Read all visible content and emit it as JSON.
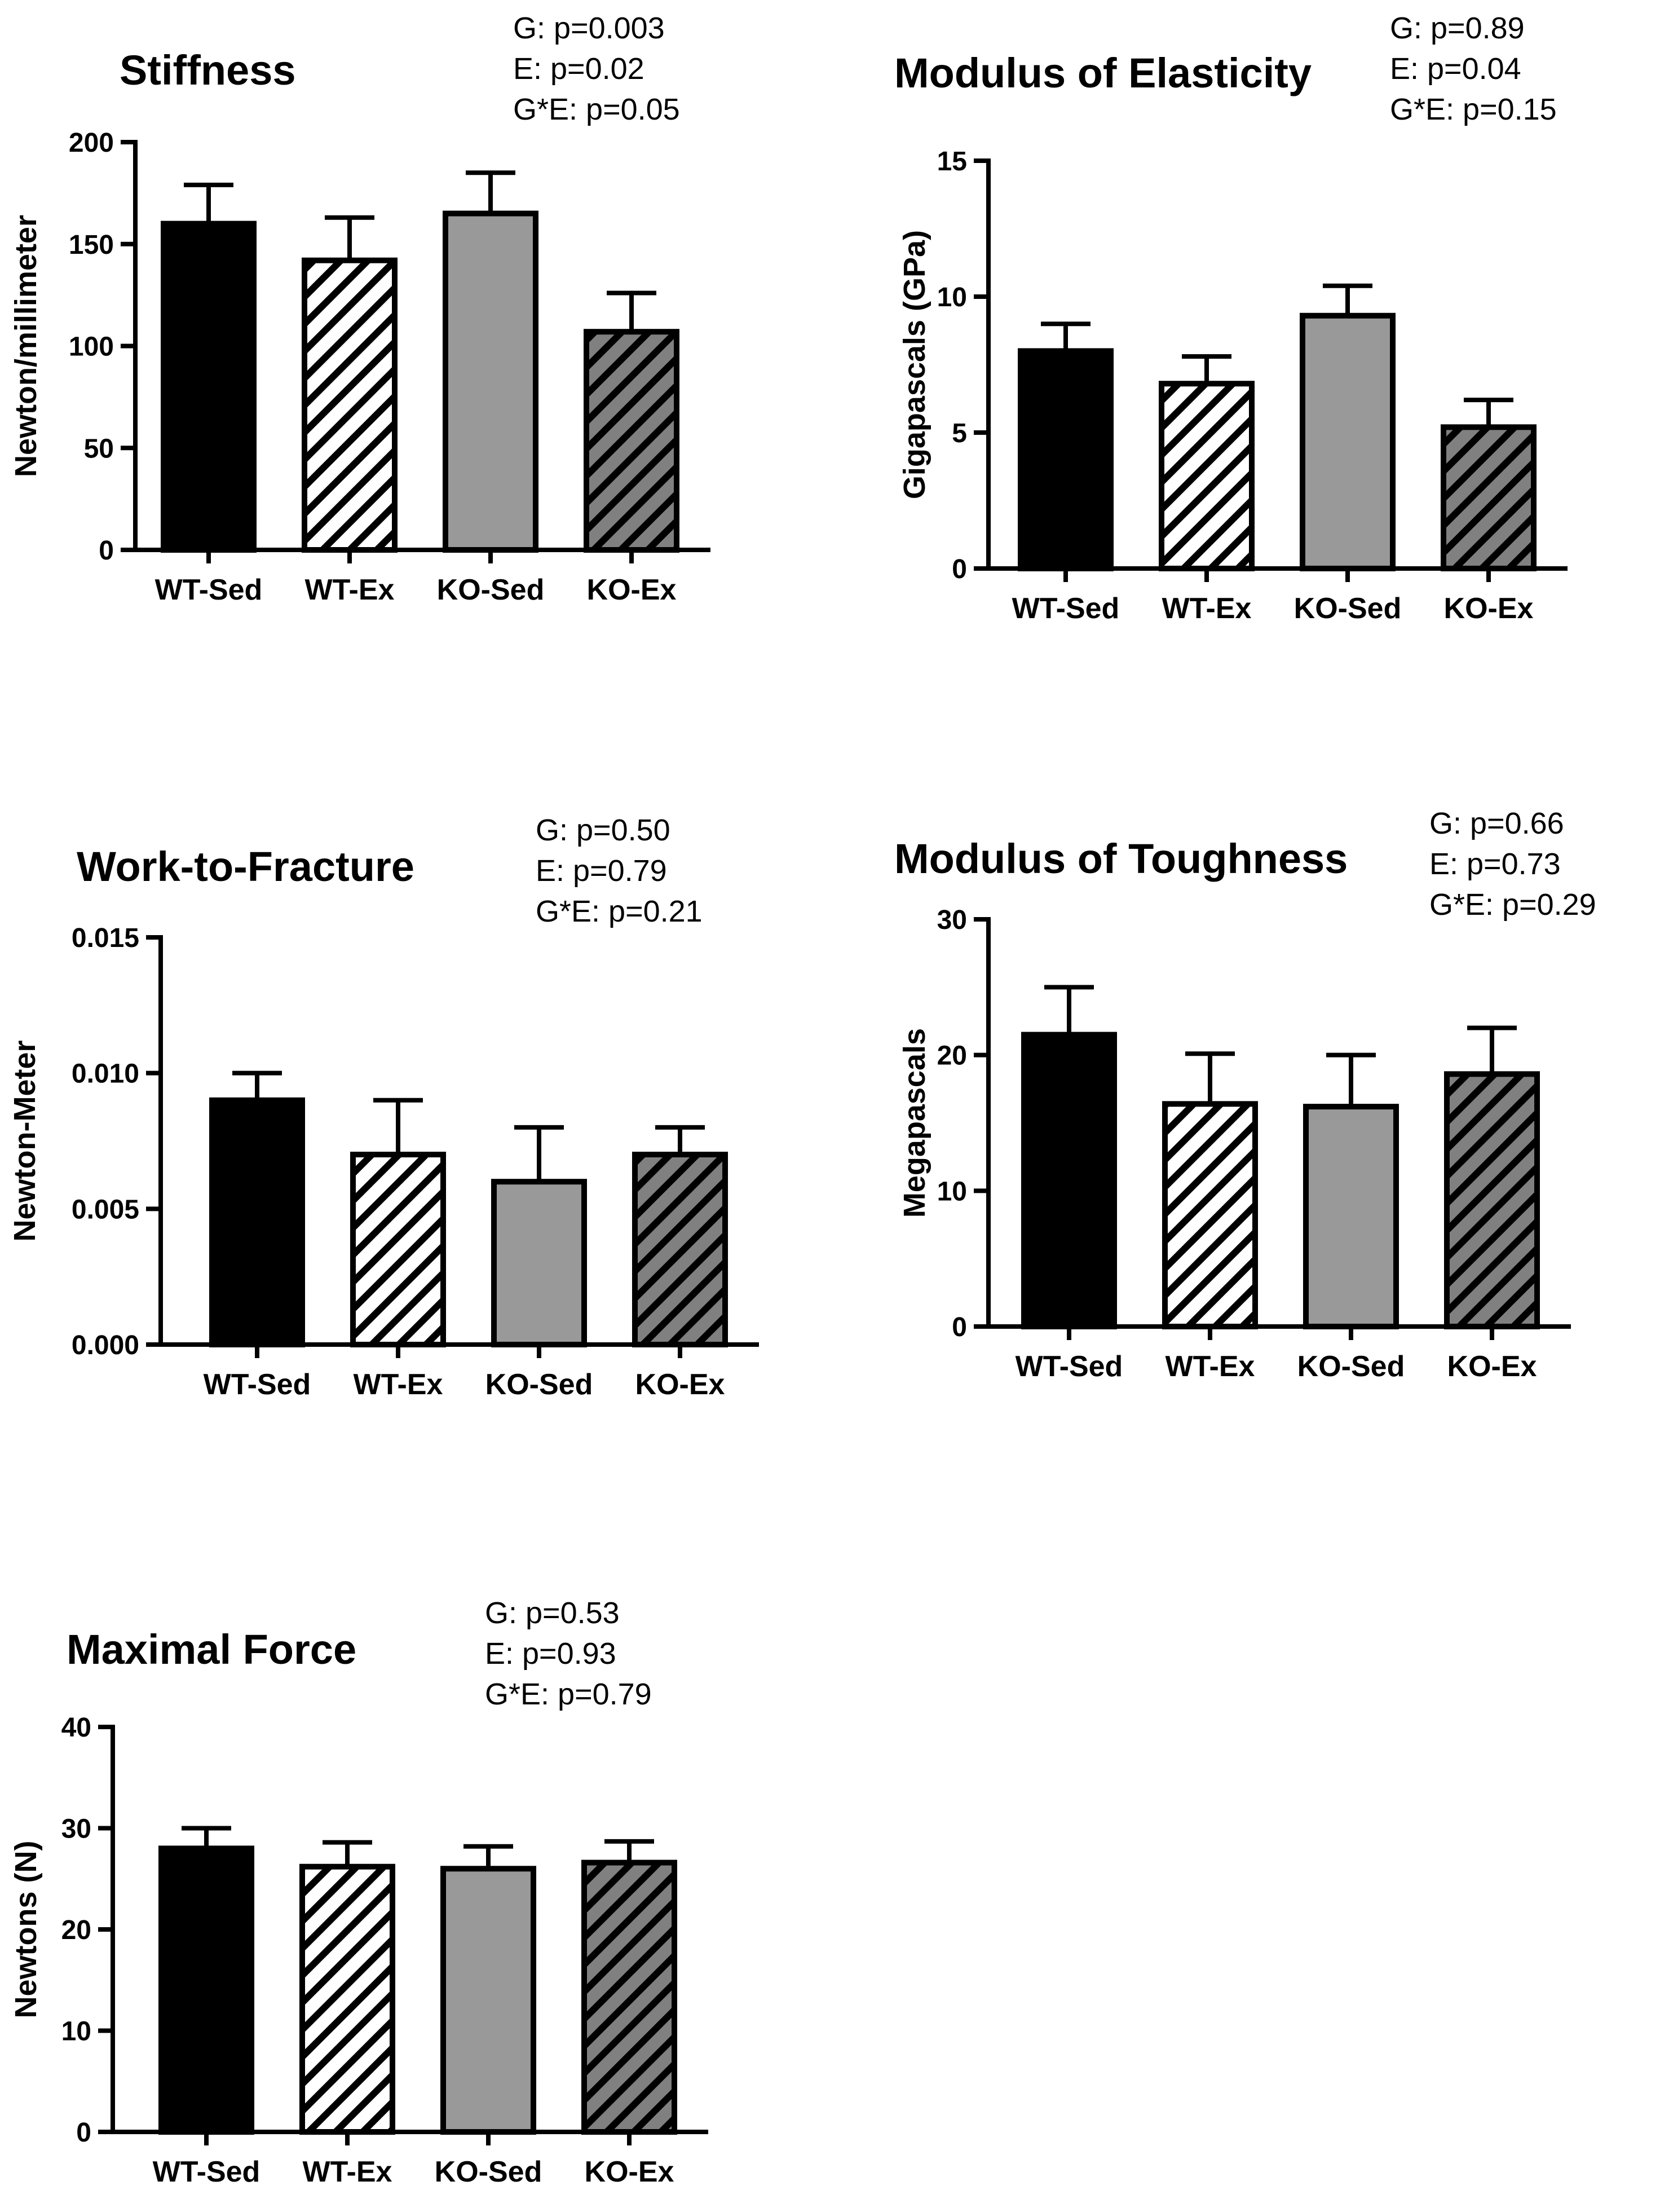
{
  "chart_data": [
    {
      "id": "stiffness",
      "type": "bar",
      "title": "Stiffness",
      "ylabel": "Newton/millimeter",
      "stats": [
        "G: p=0.003",
        "E: p=0.02",
        "G*E: p=0.05"
      ],
      "categories": [
        "WT-Sed",
        "WT-Ex",
        "KO-Sed",
        "KO-Ex"
      ],
      "values": [
        160,
        142,
        165,
        107
      ],
      "errors": [
        19,
        21,
        20,
        19
      ],
      "ylim": [
        0,
        200
      ],
      "yticks": [
        0,
        50,
        100,
        150,
        200
      ],
      "ytick_labels": [
        "0",
        "50",
        "100",
        "150",
        "200"
      ]
    },
    {
      "id": "modulus-elasticity",
      "type": "bar",
      "title": "Modulus of Elasticity",
      "ylabel": "Gigapascals (GPa)",
      "stats": [
        "G: p=0.89",
        "E: p=0.04",
        "G*E: p=0.15"
      ],
      "categories": [
        "WT-Sed",
        "WT-Ex",
        "KO-Sed",
        "KO-Ex"
      ],
      "values": [
        8.0,
        6.8,
        9.3,
        5.2
      ],
      "errors": [
        1.0,
        1.0,
        1.1,
        1.0
      ],
      "ylim": [
        0,
        15
      ],
      "yticks": [
        0,
        5,
        10,
        15
      ],
      "ytick_labels": [
        "0",
        "5",
        "10",
        "15"
      ]
    },
    {
      "id": "work-to-fracture",
      "type": "bar",
      "title": "Work-to-Fracture",
      "ylabel": "Newton-Meter",
      "stats": [
        "G: p=0.50",
        "E: p=0.79",
        "G*E: p=0.21"
      ],
      "categories": [
        "WT-Sed",
        "WT-Ex",
        "KO-Sed",
        "KO-Ex"
      ],
      "values": [
        0.009,
        0.007,
        0.006,
        0.007
      ],
      "errors": [
        0.001,
        0.002,
        0.002,
        0.001
      ],
      "ylim": [
        0,
        0.015
      ],
      "yticks": [
        0,
        0.005,
        0.01,
        0.015
      ],
      "ytick_labels": [
        "0.000",
        "0.005",
        "0.010",
        "0.015"
      ]
    },
    {
      "id": "modulus-toughness",
      "type": "bar",
      "title": "Modulus of Toughness",
      "ylabel": "Megapascals",
      "stats": [
        "G: p=0.66",
        "E: p=0.73",
        "G*E: p=0.29"
      ],
      "categories": [
        "WT-Sed",
        "WT-Ex",
        "KO-Sed",
        "KO-Ex"
      ],
      "values": [
        21.5,
        16.4,
        16.2,
        18.6
      ],
      "errors": [
        3.5,
        3.7,
        3.8,
        3.4
      ],
      "ylim": [
        0,
        30
      ],
      "yticks": [
        0,
        10,
        20,
        30
      ],
      "ytick_labels": [
        "0",
        "10",
        "20",
        "30"
      ]
    },
    {
      "id": "maximal-force",
      "type": "bar",
      "title": "Maximal Force",
      "ylabel": "Newtons (N)",
      "stats": [
        "G: p=0.53",
        "E: p=0.93",
        "G*E: p=0.79"
      ],
      "categories": [
        "WT-Sed",
        "WT-Ex",
        "KO-Sed",
        "KO-Ex"
      ],
      "values": [
        28.0,
        26.2,
        26.0,
        26.6
      ],
      "errors": [
        2.0,
        2.4,
        2.2,
        2.1
      ],
      "ylim": [
        0,
        40
      ],
      "yticks": [
        0,
        10,
        20,
        30,
        40
      ],
      "ytick_labels": [
        "0",
        "10",
        "20",
        "30",
        "40"
      ]
    }
  ],
  "styles": {
    "bar_fills": [
      "solid-black",
      "hatch-white",
      "solid-gray",
      "hatch-gray"
    ],
    "colors": {
      "black": "#000000",
      "gray": "#999999",
      "white": "#ffffff",
      "hatch_gray": "#808080"
    }
  }
}
